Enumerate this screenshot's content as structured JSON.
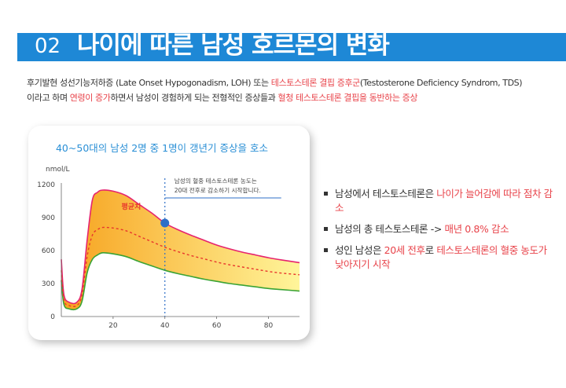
{
  "header": {
    "number": "02",
    "title": "나이에 따른 남성 호르몬의 변화"
  },
  "intro": {
    "line1_a": "후기발현 성선기능저하증 (Late Onset Hypogonadism, LOH) 또는 ",
    "line1_red": "테스토스테론 결핍 증후군",
    "line1_b": "(Testosterone Deficiency Syndrom, TDS)",
    "line2_a": "이라고 하며 ",
    "line2_red1": "연령이 증가",
    "line2_b": "하면서 남성이 경험하게 되는 전형적인 증상들과 ",
    "line2_red2": "혈청 테스토스테론 결핍을 동반하는 증상"
  },
  "chart_data": {
    "type": "area",
    "title": "40~50대의 남성 2명 중 1명이 갱년기 증상을 호소",
    "ylabel": "nmol/L",
    "xlim": [
      0,
      92
    ],
    "ylim": [
      0,
      1200
    ],
    "xticks": [
      20,
      40,
      60,
      80
    ],
    "yticks": [
      0,
      300,
      600,
      900,
      1200
    ],
    "x": [
      0,
      1,
      3,
      6,
      8,
      10,
      12,
      14,
      16,
      20,
      25,
      30,
      35,
      40,
      45,
      50,
      55,
      60,
      65,
      70,
      75,
      80,
      85,
      92
    ],
    "series": [
      {
        "name": "upper",
        "values": [
          520,
          200,
          130,
          130,
          250,
          700,
          1060,
          1130,
          1150,
          1140,
          1100,
          1020,
          940,
          850,
          790,
          740,
          695,
          650,
          615,
          585,
          560,
          535,
          515,
          490
        ]
      },
      {
        "name": "평균치",
        "values": [
          420,
          150,
          100,
          100,
          200,
          550,
          740,
          790,
          810,
          805,
          780,
          730,
          680,
          630,
          590,
          555,
          525,
          495,
          470,
          450,
          430,
          410,
          395,
          380
        ]
      },
      {
        "name": "lower",
        "values": [
          330,
          110,
          70,
          70,
          140,
          400,
          520,
          560,
          580,
          570,
          545,
          500,
          460,
          420,
          390,
          365,
          340,
          320,
          300,
          285,
          270,
          255,
          245,
          232
        ]
      }
    ],
    "marker": {
      "x": 40,
      "y": 850
    },
    "annotation": "남성의 혈중 테스토스테론 농도는 20대 전후로 감소하기 시작합니다.",
    "colors": {
      "band_top": "#f7a21e",
      "band_bottom": "#fff59a",
      "upper_line": "#e6246e",
      "mean_line": "#e8362c",
      "lower_line": "#3aa335",
      "marker": "#2e6fc7",
      "title": "#2a8fd6"
    }
  },
  "bullets": [
    {
      "text_a": "남성에서 테스토스테론은 ",
      "text_red": "나이가 늘어감에 따라 점차 감소",
      "text_b": ""
    },
    {
      "text_a": "남성의 총 테스토스테론  -> ",
      "text_red": "매년 0.8% 감소",
      "text_b": ""
    },
    {
      "text_a": "성인 남성은 ",
      "text_red": "20세 전후",
      "text_b": "로 ",
      "text_red2": "테스토스테론의 혈중 농도가 낮아지기 시작"
    }
  ]
}
